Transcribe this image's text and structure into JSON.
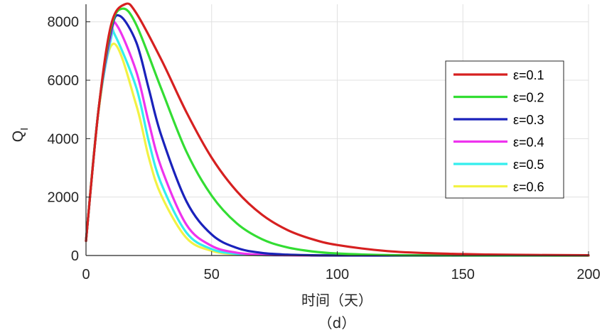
{
  "chart_data": {
    "type": "line",
    "xlabel": "时间（天）",
    "ylabel": "Q",
    "ylabel_sub": "I",
    "caption": "（d）",
    "xlim": [
      0,
      200
    ],
    "ylim": [
      0,
      8600
    ],
    "xticks": [
      0,
      50,
      100,
      150,
      200
    ],
    "yticks": [
      0,
      2000,
      4000,
      6000,
      8000
    ],
    "xtick_labels": [
      "0",
      "50",
      "100",
      "150",
      "200"
    ],
    "ytick_labels": [
      "0",
      "2000",
      "4000",
      "6000",
      "8000"
    ],
    "grid": true,
    "legend_position": "right",
    "series": [
      {
        "name": "ε=0.1",
        "color": "#d62020",
        "peak_x": 15.5,
        "peak_y": 8600,
        "points": [
          [
            0,
            500
          ],
          [
            5,
            5000
          ],
          [
            10,
            7900
          ],
          [
            15.5,
            8600
          ],
          [
            20,
            8300
          ],
          [
            30,
            6700
          ],
          [
            40,
            4900
          ],
          [
            50,
            3350
          ],
          [
            60,
            2200
          ],
          [
            70,
            1400
          ],
          [
            80,
            880
          ],
          [
            90,
            560
          ],
          [
            100,
            360
          ],
          [
            120,
            150
          ],
          [
            140,
            70
          ],
          [
            160,
            35
          ],
          [
            180,
            18
          ],
          [
            200,
            10
          ]
        ]
      },
      {
        "name": "ε=0.2",
        "color": "#33dd33",
        "peak_x": 14.5,
        "peak_y": 8450,
        "points": [
          [
            0,
            500
          ],
          [
            5,
            5000
          ],
          [
            10,
            7800
          ],
          [
            14.5,
            8450
          ],
          [
            20,
            7900
          ],
          [
            30,
            5700
          ],
          [
            40,
            3550
          ],
          [
            50,
            2050
          ],
          [
            60,
            1100
          ],
          [
            70,
            560
          ],
          [
            80,
            280
          ],
          [
            90,
            140
          ],
          [
            100,
            70
          ],
          [
            120,
            15
          ],
          [
            140,
            5
          ],
          [
            160,
            2
          ],
          [
            180,
            1
          ],
          [
            200,
            0
          ]
        ]
      },
      {
        "name": "ε=0.3",
        "color": "#1a22bb",
        "peak_x": 13.5,
        "peak_y": 8200,
        "points": [
          [
            0,
            500
          ],
          [
            5,
            5000
          ],
          [
            10,
            7700
          ],
          [
            13.5,
            8200
          ],
          [
            20,
            7300
          ],
          [
            25,
            5700
          ],
          [
            30,
            4100
          ],
          [
            40,
            1850
          ],
          [
            50,
            720
          ],
          [
            60,
            260
          ],
          [
            70,
            90
          ],
          [
            80,
            30
          ],
          [
            90,
            10
          ],
          [
            100,
            3
          ],
          [
            120,
            0
          ],
          [
            200,
            0
          ]
        ]
      },
      {
        "name": "ε=0.4",
        "color": "#ee33ee",
        "peak_x": 12.5,
        "peak_y": 7850,
        "points": [
          [
            0,
            500
          ],
          [
            5,
            5000
          ],
          [
            10,
            7600
          ],
          [
            12.5,
            7850
          ],
          [
            20,
            6300
          ],
          [
            25,
            4550
          ],
          [
            30,
            3000
          ],
          [
            40,
            1050
          ],
          [
            50,
            330
          ],
          [
            60,
            95
          ],
          [
            70,
            25
          ],
          [
            80,
            7
          ],
          [
            90,
            2
          ],
          [
            100,
            0
          ],
          [
            200,
            0
          ]
        ]
      },
      {
        "name": "ε=0.5",
        "color": "#33eeee",
        "peak_x": 11.5,
        "peak_y": 7550,
        "points": [
          [
            0,
            500
          ],
          [
            5,
            5000
          ],
          [
            10,
            7450
          ],
          [
            11.5,
            7550
          ],
          [
            20,
            5750
          ],
          [
            25,
            3900
          ],
          [
            30,
            2450
          ],
          [
            40,
            780
          ],
          [
            50,
            220
          ],
          [
            60,
            55
          ],
          [
            70,
            13
          ],
          [
            80,
            3
          ],
          [
            90,
            1
          ],
          [
            100,
            0
          ],
          [
            200,
            0
          ]
        ]
      },
      {
        "name": "ε=0.6",
        "color": "#f2f244",
        "peak_x": 11.0,
        "peak_y": 7250,
        "points": [
          [
            0,
            500
          ],
          [
            5,
            4950
          ],
          [
            11,
            7250
          ],
          [
            20,
            5150
          ],
          [
            25,
            3350
          ],
          [
            30,
            2050
          ],
          [
            40,
            600
          ],
          [
            50,
            160
          ],
          [
            60,
            38
          ],
          [
            70,
            9
          ],
          [
            80,
            2
          ],
          [
            90,
            0
          ],
          [
            200,
            0
          ]
        ]
      }
    ]
  }
}
